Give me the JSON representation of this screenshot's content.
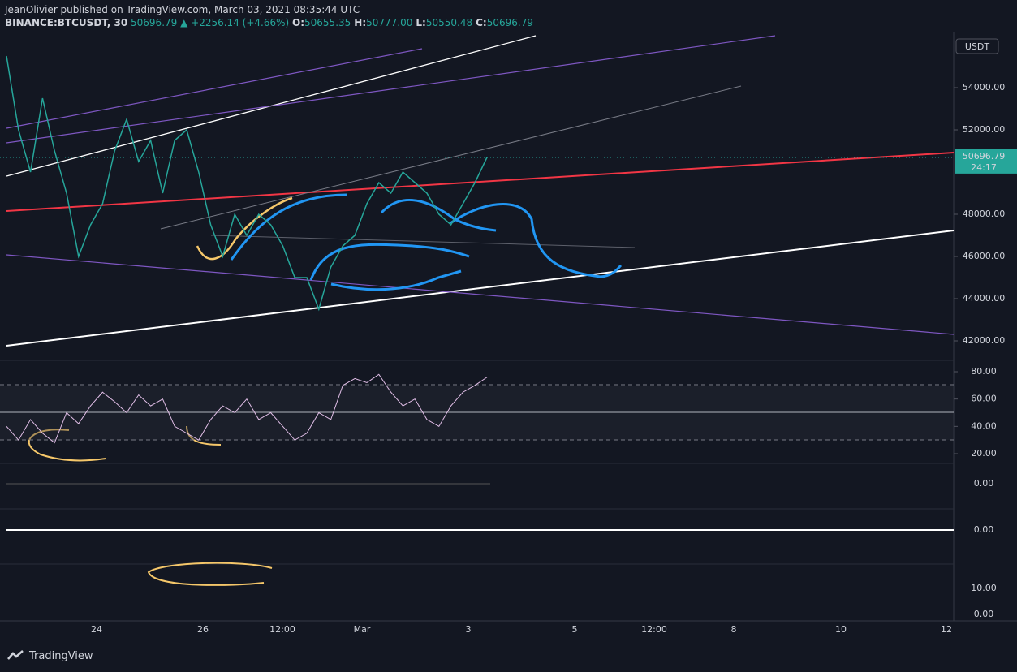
{
  "header": {
    "publisher": "JeanOlivier published on TradingView.com, March 03, 2021 08:35:44 UTC",
    "symbol": "BINANCE:BTCUSDT, 30",
    "last": "50696.79",
    "change": "▲ +2256.14 (+4.66%)",
    "ohlc": [
      {
        "label": "O:",
        "value": "50655.35"
      },
      {
        "label": "H:",
        "value": "50777.00"
      },
      {
        "label": "L:",
        "value": "50550.48"
      },
      {
        "label": "C:",
        "value": "50696.79"
      }
    ]
  },
  "price_axis": {
    "currency": "USDT",
    "ticks": [
      {
        "value": 54000,
        "label": "54000.00"
      },
      {
        "value": 52000,
        "label": "52000.00"
      },
      {
        "value": 48000,
        "label": "48000.00"
      },
      {
        "value": 46000,
        "label": "46000.00"
      },
      {
        "value": 44000,
        "label": "44000.00"
      },
      {
        "value": 42000,
        "label": "42000.00"
      }
    ],
    "last": {
      "value": 50696.79,
      "label": "50696.79"
    },
    "countdown": "24:17"
  },
  "price_series": {
    "values": [
      55500,
      52000,
      50000,
      53500,
      51000,
      49000,
      46000,
      47500,
      48500,
      51000,
      52500,
      50500,
      51500,
      49000,
      51500,
      52000,
      50000,
      47500,
      46000,
      48000,
      47000,
      48000,
      47500,
      46500,
      45000,
      45000,
      43500,
      45500,
      46500,
      47000,
      48500,
      49500,
      49000,
      50000,
      49500,
      49000,
      48000,
      47500,
      48500,
      49500,
      50696.79
    ]
  },
  "rsi": {
    "ticks": [
      {
        "value": 80,
        "label": "80.00"
      },
      {
        "value": 60,
        "label": "60.00"
      },
      {
        "value": 40,
        "label": "40.00"
      },
      {
        "value": 20,
        "label": "20.00"
      }
    ],
    "values": [
      40,
      30,
      45,
      35,
      28,
      50,
      42,
      55,
      65,
      58,
      50,
      63,
      55,
      60,
      40,
      35,
      30,
      45,
      55,
      50,
      60,
      45,
      50,
      40,
      30,
      35,
      50,
      45,
      70,
      75,
      72,
      78,
      65,
      55,
      60,
      45,
      40,
      55,
      65,
      70,
      76
    ]
  },
  "pane3_label": "0.00",
  "pane4_label": "0.00",
  "pane5_labels": [
    "10.00",
    "0.00"
  ],
  "time_axis": [
    "24",
    "26",
    "12:00",
    "Mar",
    "3",
    "5",
    "12:00",
    "8",
    "10",
    "12"
  ],
  "footer": "TradingView"
}
